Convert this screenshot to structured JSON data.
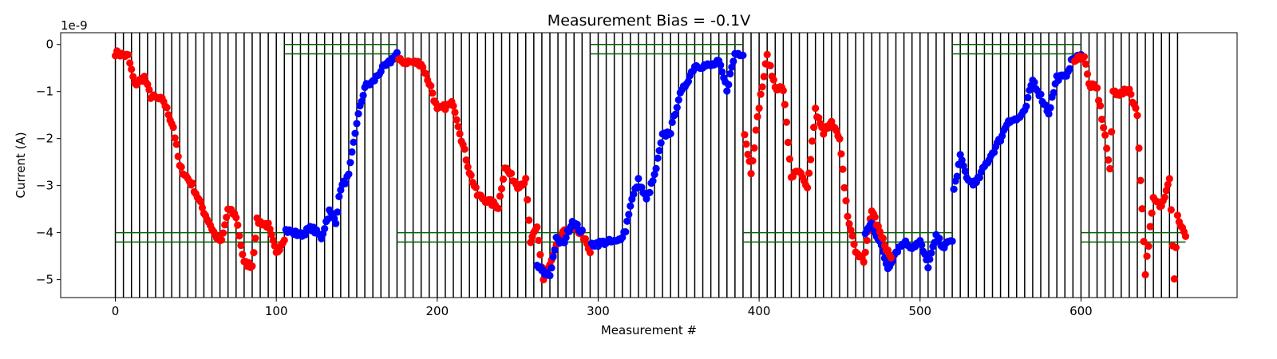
{
  "chart_data": {
    "type": "scatter",
    "title": "Measurement Bias = -0.1V",
    "xlabel": "Measurement #",
    "ylabel": "Current (A)",
    "y_offset_text": "1e-9",
    "y_scale_factor": 1e-09,
    "xlim": [
      -34,
      697
    ],
    "ylim": [
      -5.38,
      0.25
    ],
    "x_ticks": [
      0,
      100,
      200,
      300,
      400,
      500,
      600
    ],
    "x_tick_labels": [
      "0",
      "100",
      "200",
      "300",
      "400",
      "500",
      "600"
    ],
    "y_ticks": [
      0,
      -1,
      -2,
      -3,
      -4,
      -5
    ],
    "y_tick_labels": [
      "0",
      "−1",
      "−2",
      "−3",
      "−4",
      "−5"
    ],
    "colors": {
      "red_series": "#ff0000",
      "blue_series": "#0000ff",
      "boundary_lines": "#000000",
      "level_lines": "#006400"
    },
    "vertical_boundaries": {
      "start": 0,
      "end": 660,
      "step": 5
    },
    "level_lines": [
      {
        "x": [
          0,
          105
        ],
        "y": [
          -4.0,
          -4.2
        ]
      },
      {
        "x": [
          105,
          175
        ],
        "y": [
          0.0,
          -0.2
        ]
      },
      {
        "x": [
          175,
          295
        ],
        "y": [
          -4.0,
          -4.2
        ]
      },
      {
        "x": [
          295,
          390
        ],
        "y": [
          0.0,
          -0.2
        ]
      },
      {
        "x": [
          390,
          520
        ],
        "y": [
          -4.0,
          -4.2
        ]
      },
      {
        "x": [
          520,
          600
        ],
        "y": [
          0.0,
          -0.2
        ]
      },
      {
        "x": [
          600,
          665
        ],
        "y": [
          -4.0,
          -4.2
        ]
      }
    ],
    "series": [
      {
        "color": "red",
        "x_start": 0,
        "x_end": 105,
        "knots": [
          [
            0,
            -0.18
          ],
          [
            8,
            -0.25
          ],
          [
            12,
            -0.85
          ],
          [
            18,
            -0.7
          ],
          [
            22,
            -1.1
          ],
          [
            30,
            -1.2
          ],
          [
            36,
            -1.75
          ],
          [
            40,
            -2.6
          ],
          [
            48,
            -3.0
          ],
          [
            55,
            -3.55
          ],
          [
            62,
            -4.05
          ],
          [
            66,
            -4.2
          ],
          [
            70,
            -3.5
          ],
          [
            75,
            -3.65
          ],
          [
            80,
            -4.65
          ],
          [
            85,
            -4.7
          ],
          [
            88,
            -3.75
          ],
          [
            95,
            -3.85
          ],
          [
            100,
            -4.45
          ],
          [
            105,
            -4.1
          ]
        ]
      },
      {
        "color": "blue",
        "x_start": 106,
        "x_end": 175,
        "knots": [
          [
            106,
            -3.95
          ],
          [
            115,
            -4.05
          ],
          [
            122,
            -3.9
          ],
          [
            128,
            -4.1
          ],
          [
            133,
            -3.55
          ],
          [
            137,
            -3.75
          ],
          [
            140,
            -3.05
          ],
          [
            145,
            -2.8
          ],
          [
            150,
            -1.65
          ],
          [
            155,
            -0.9
          ],
          [
            160,
            -0.8
          ],
          [
            165,
            -0.55
          ],
          [
            170,
            -0.4
          ],
          [
            175,
            -0.18
          ]
        ]
      },
      {
        "color": "red",
        "x_start": 176,
        "x_end": 295,
        "knots": [
          [
            176,
            -0.35
          ],
          [
            190,
            -0.4
          ],
          [
            196,
            -0.9
          ],
          [
            200,
            -1.4
          ],
          [
            210,
            -1.25
          ],
          [
            215,
            -2.0
          ],
          [
            220,
            -2.7
          ],
          [
            225,
            -3.2
          ],
          [
            230,
            -3.3
          ],
          [
            238,
            -3.45
          ],
          [
            242,
            -2.6
          ],
          [
            250,
            -3.0
          ],
          [
            255,
            -2.9
          ],
          [
            258,
            -4.2
          ],
          [
            262,
            -3.9
          ],
          [
            266,
            -5.0
          ],
          [
            270,
            -4.7
          ],
          [
            276,
            -4.1
          ],
          [
            282,
            -3.9
          ],
          [
            290,
            -4.0
          ],
          [
            295,
            -4.45
          ]
        ]
      },
      {
        "color": "blue",
        "x_start": 262,
        "x_end": 290,
        "knots": [
          [
            262,
            -4.7
          ],
          [
            266,
            -4.85
          ],
          [
            270,
            -4.9
          ],
          [
            274,
            -4.15
          ],
          [
            278,
            -4.25
          ],
          [
            284,
            -3.75
          ],
          [
            290,
            -4.0
          ]
        ]
      },
      {
        "color": "blue",
        "x_start": 296,
        "x_end": 390,
        "knots": [
          [
            296,
            -4.25
          ],
          [
            305,
            -4.2
          ],
          [
            312,
            -4.2
          ],
          [
            317,
            -3.95
          ],
          [
            320,
            -3.4
          ],
          [
            325,
            -2.9
          ],
          [
            330,
            -3.3
          ],
          [
            335,
            -2.8
          ],
          [
            340,
            -1.95
          ],
          [
            345,
            -1.85
          ],
          [
            350,
            -1.15
          ],
          [
            355,
            -0.8
          ],
          [
            360,
            -0.45
          ],
          [
            370,
            -0.45
          ],
          [
            375,
            -0.38
          ],
          [
            380,
            -0.95
          ],
          [
            385,
            -0.2
          ],
          [
            390,
            -0.18
          ]
        ]
      },
      {
        "color": "red",
        "x_start": 391,
        "x_end": 470,
        "knots": [
          [
            391,
            -1.9
          ],
          [
            395,
            -2.7
          ],
          [
            400,
            -1.3
          ],
          [
            405,
            -0.25
          ],
          [
            410,
            -0.9
          ],
          [
            415,
            -0.95
          ],
          [
            420,
            -2.8
          ],
          [
            425,
            -2.7
          ],
          [
            430,
            -3.1
          ],
          [
            435,
            -1.4
          ],
          [
            440,
            -1.9
          ],
          [
            445,
            -1.6
          ],
          [
            450,
            -2.05
          ],
          [
            455,
            -3.65
          ],
          [
            460,
            -4.4
          ],
          [
            465,
            -4.6
          ],
          [
            470,
            -3.55
          ]
        ]
      },
      {
        "color": "blue",
        "x_start": 466,
        "x_end": 520,
        "knots": [
          [
            466,
            -4.0
          ],
          [
            470,
            -3.8
          ],
          [
            475,
            -4.2
          ],
          [
            480,
            -4.75
          ],
          [
            485,
            -4.4
          ],
          [
            490,
            -4.2
          ],
          [
            495,
            -4.3
          ],
          [
            500,
            -4.2
          ],
          [
            505,
            -4.7
          ],
          [
            510,
            -4.1
          ],
          [
            515,
            -4.3
          ],
          [
            520,
            -4.15
          ]
        ]
      },
      {
        "color": "red",
        "x_start": 471,
        "x_end": 482,
        "knots": [
          [
            471,
            -3.6
          ],
          [
            476,
            -4.1
          ],
          [
            482,
            -4.55
          ]
        ]
      },
      {
        "color": "blue",
        "x_start": 521,
        "x_end": 600,
        "knots": [
          [
            521,
            -3.1
          ],
          [
            525,
            -2.4
          ],
          [
            530,
            -2.9
          ],
          [
            535,
            -2.95
          ],
          [
            540,
            -2.6
          ],
          [
            545,
            -2.3
          ],
          [
            550,
            -2.0
          ],
          [
            555,
            -1.6
          ],
          [
            560,
            -1.6
          ],
          [
            565,
            -1.45
          ],
          [
            570,
            -0.75
          ],
          [
            575,
            -1.1
          ],
          [
            580,
            -1.45
          ],
          [
            585,
            -0.7
          ],
          [
            590,
            -0.7
          ],
          [
            595,
            -0.3
          ],
          [
            600,
            -0.25
          ]
        ]
      },
      {
        "color": "red",
        "x_start": 596,
        "x_end": 665,
        "knots": [
          [
            596,
            -0.3
          ],
          [
            602,
            -0.25
          ],
          [
            605,
            -0.85
          ],
          [
            610,
            -0.95
          ],
          [
            615,
            -1.95
          ],
          [
            618,
            -2.7
          ],
          [
            620,
            -1.0
          ],
          [
            625,
            -1.05
          ],
          [
            630,
            -0.95
          ],
          [
            635,
            -1.5
          ],
          [
            640,
            -4.85
          ],
          [
            645,
            -3.3
          ],
          [
            650,
            -3.45
          ],
          [
            655,
            -2.8
          ],
          [
            658,
            -4.95
          ],
          [
            660,
            -3.65
          ],
          [
            665,
            -4.1
          ]
        ]
      }
    ]
  }
}
